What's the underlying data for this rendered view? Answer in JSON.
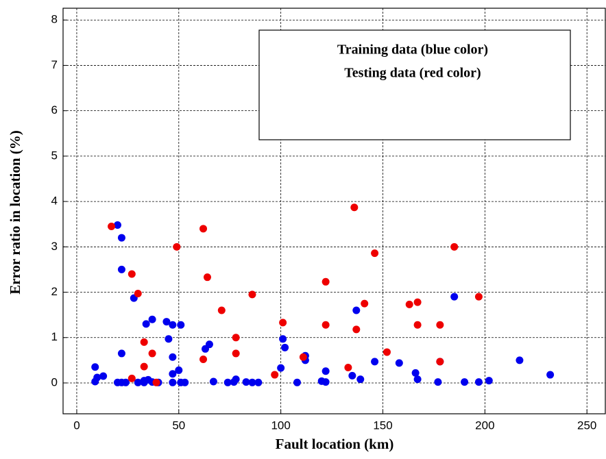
{
  "chart_data": {
    "type": "scatter",
    "x_label": "Fault location (km)",
    "y_label": "Error ratio in location (%)",
    "xlim": [
      -6.7,
      259
    ],
    "ylim": [
      -0.68,
      8.26
    ],
    "xticks": [
      0,
      50,
      100,
      150,
      200,
      250
    ],
    "yticks": [
      0,
      1,
      2,
      3,
      4,
      5,
      6,
      7,
      8
    ],
    "grid": true,
    "series": [
      {
        "name": "Training data (blue color)",
        "color": "#0000ee",
        "x": [
          20,
          22,
          22,
          22,
          28,
          34,
          37,
          44,
          45,
          47,
          51,
          47,
          47,
          50,
          9,
          10,
          13,
          9,
          20,
          22,
          24,
          30,
          33,
          33,
          35,
          37,
          40,
          47,
          51,
          53,
          63,
          65,
          67,
          74,
          77,
          78,
          83,
          86,
          89,
          100,
          101,
          102,
          108,
          112,
          112,
          120,
          122,
          122,
          135,
          137,
          139,
          146,
          158,
          166,
          167,
          177,
          178,
          185,
          190,
          197,
          202,
          217,
          232
        ],
        "values": [
          3.48,
          3.2,
          2.5,
          0.65,
          1.87,
          1.3,
          1.4,
          1.35,
          0.97,
          1.28,
          1.28,
          0.57,
          0.2,
          0.28,
          0.35,
          0.12,
          0.15,
          0.03,
          0.01,
          0.01,
          0.01,
          0.01,
          0.05,
          0.01,
          0.07,
          0.02,
          0.01,
          0.01,
          0.01,
          0.01,
          0.75,
          0.85,
          0.03,
          0.01,
          0.02,
          0.08,
          0.02,
          0.01,
          0.01,
          0.33,
          0.97,
          0.78,
          0.01,
          0.6,
          0.5,
          0.04,
          0.02,
          0.26,
          0.16,
          1.6,
          0.08,
          0.47,
          0.44,
          0.22,
          0.08,
          0.02,
          0.47,
          1.9,
          0.02,
          0.02,
          0.05,
          0.5,
          0.18
        ]
      },
      {
        "name": "Testing data (red color)",
        "color": "#ee0000",
        "x": [
          17,
          27,
          30,
          27,
          33,
          33,
          37,
          39,
          49,
          62,
          64,
          62,
          71,
          78,
          78,
          86,
          97,
          101,
          111,
          122,
          122,
          133,
          136,
          137,
          141,
          146,
          152,
          163,
          167,
          167,
          178,
          178,
          185,
          197
        ],
        "values": [
          3.45,
          2.4,
          1.97,
          0.1,
          0.9,
          0.36,
          0.65,
          0.01,
          3.0,
          3.4,
          2.33,
          0.52,
          1.6,
          1.0,
          0.65,
          1.95,
          0.18,
          1.33,
          0.57,
          2.23,
          1.28,
          0.34,
          3.87,
          1.18,
          1.75,
          2.86,
          0.68,
          1.73,
          1.78,
          1.28,
          1.28,
          0.47,
          3.0,
          1.9
        ]
      }
    ]
  }
}
